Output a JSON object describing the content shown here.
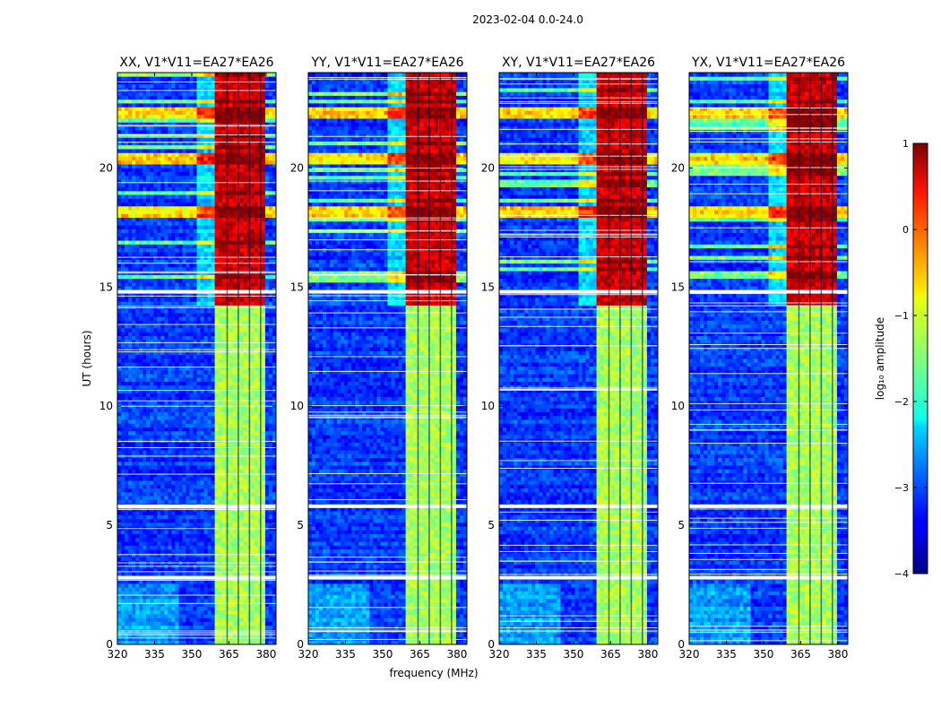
{
  "suptitle": "2023-02-04 0.0-24.0",
  "chart_data": {
    "type": "heatmap",
    "title": "2023-02-04 0.0-24.0",
    "xlabel": "frequency (MHz)",
    "ylabel": "UT (hours)",
    "xlim": [
      320,
      384
    ],
    "ylim": [
      0,
      24
    ],
    "x_ticks": [
      320,
      335,
      350,
      365,
      380
    ],
    "y_ticks": [
      0,
      5,
      10,
      15,
      20
    ],
    "panels": [
      {
        "title": "XX, V1*V11=EA27*EA26"
      },
      {
        "title": "YY, V1*V11=EA27*EA26"
      },
      {
        "title": "XY, V1*V11=EA27*EA26"
      },
      {
        "title": "YX, V1*V11=EA27*EA26"
      }
    ],
    "colorbar": {
      "label": "log₁₀ amplitude",
      "range": [
        -4,
        1
      ],
      "ticks": [
        "1",
        "0",
        "−1",
        "−2",
        "−3",
        "−4"
      ],
      "colormap": "jet"
    },
    "approx_levels": {
      "rfi_band_mhz": [
        360,
        380
      ],
      "rfi_band_level_night": -1.3,
      "rfi_band_level_day": 0.6,
      "background_level": -3.1,
      "bright_rows_ut": [
        18.2,
        20.4,
        22.3
      ],
      "blank_rows_ut": [
        2.8,
        5.8,
        14.8
      ]
    }
  }
}
